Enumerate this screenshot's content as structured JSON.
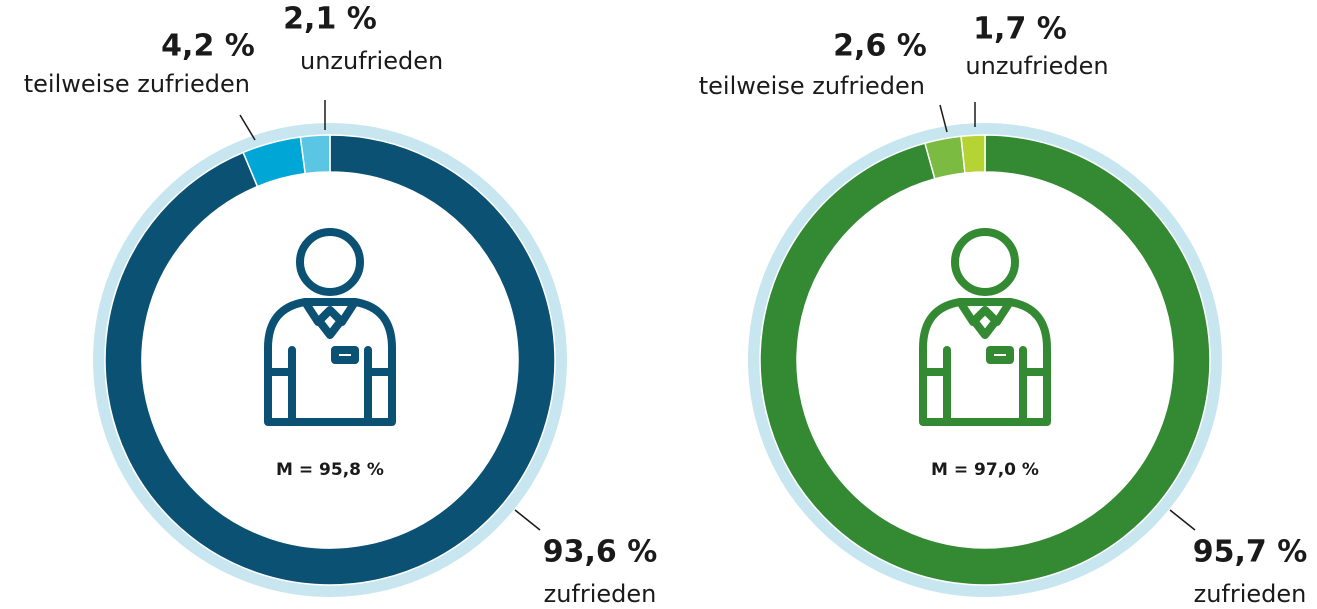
{
  "chart_data": [
    {
      "type": "pie",
      "categories": [
        "zufrieden",
        "teilweise zufrieden",
        "unzufrieden"
      ],
      "values": [
        93.6,
        4.2,
        2.1
      ],
      "value_labels": [
        "93,6 %",
        "4,2 %",
        "2,1 %"
      ],
      "colors": [
        "#0b5174",
        "#00a6d6",
        "#5ac6e4"
      ],
      "annotation": "M = 95,8 %"
    },
    {
      "type": "pie",
      "categories": [
        "zufrieden",
        "teilweise zufrieden",
        "unzufrieden"
      ],
      "values": [
        95.7,
        2.6,
        1.7
      ],
      "value_labels": [
        "95,7 %",
        "2,6 %",
        "1,7 %"
      ],
      "colors": [
        "#348a33",
        "#7bbb41",
        "#b6d334"
      ],
      "annotation": "M = 97,0 %"
    }
  ]
}
